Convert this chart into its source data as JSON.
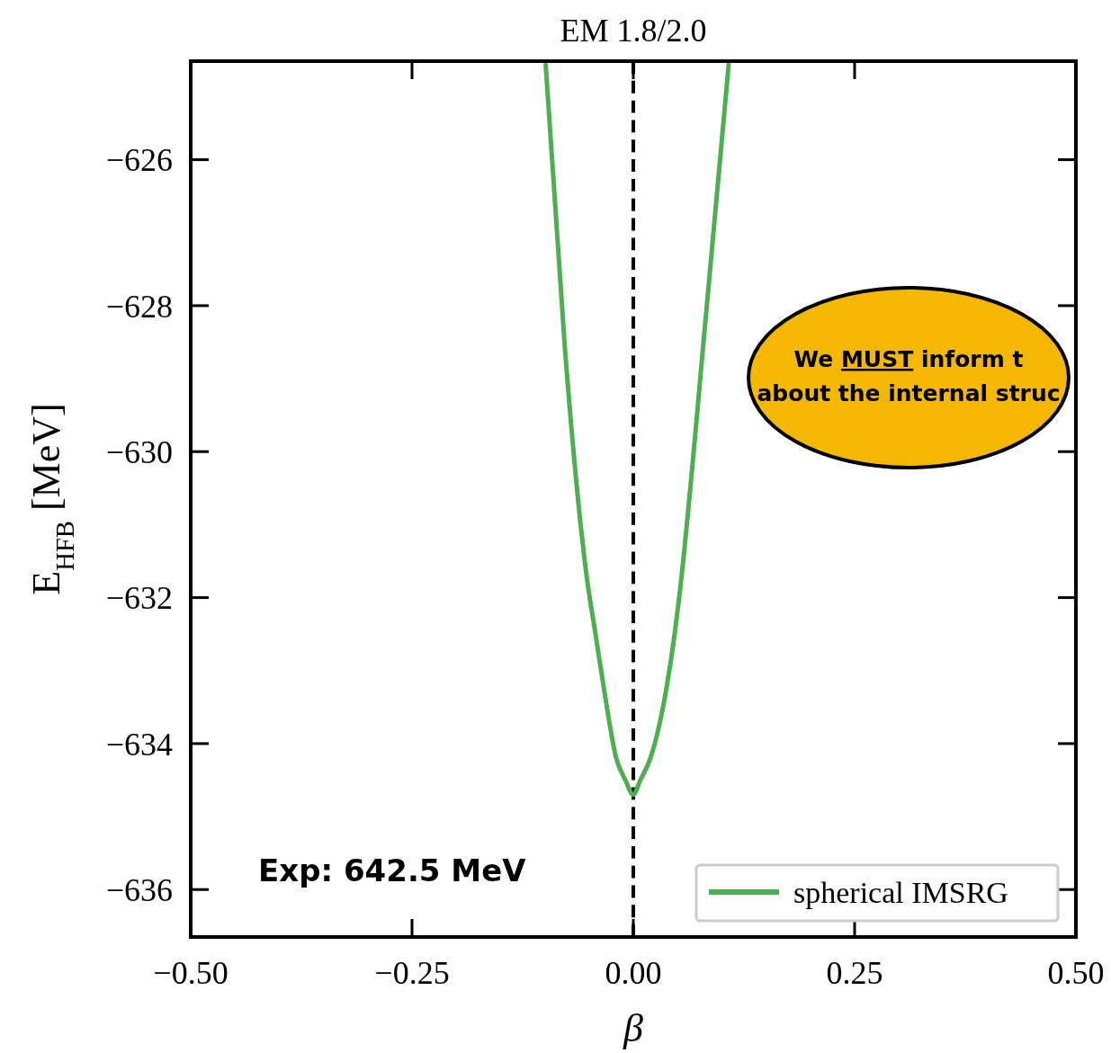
{
  "chart_data": {
    "type": "line",
    "title": "EM 1.8/2.0",
    "xlabel": "β",
    "ylabel": "E$_{HFB}$ [MeV]",
    "series": [
      {
        "name": "spherical IMSRG",
        "color": "#4caf50",
        "x": [
          -0.099,
          -0.0772,
          -0.0528,
          -0.0427,
          -0.0325,
          -0.0193,
          -0.009,
          0,
          0.008,
          0.0193,
          0.0366,
          0.0467,
          0.0518,
          0.0823,
          0.1077
        ],
        "values": [
          -624.7,
          -628.6,
          -631.7,
          -632.5,
          -633.3,
          -634.2,
          -634.5,
          -634.7,
          -634.5,
          -634.2,
          -633.3,
          -632.5,
          -632.0,
          -628.1,
          -624.7
        ]
      }
    ],
    "xlim": [
      -0.5,
      0.5
    ],
    "ylim": [
      -636.65,
      -624.65
    ],
    "xticks": [
      {
        "value": -0.5,
        "label": "−0.50"
      },
      {
        "value": -0.25,
        "label": "−0.25"
      },
      {
        "value": 0,
        "label": "0.00"
      },
      {
        "value": 0.25,
        "label": "0.25"
      },
      {
        "value": 0.5,
        "label": "0.50"
      }
    ],
    "yticks": [
      {
        "value": -636,
        "label": "−636"
      },
      {
        "value": -634,
        "label": "−634"
      },
      {
        "value": -632,
        "label": "−632"
      },
      {
        "value": -630,
        "label": "−630"
      },
      {
        "value": -628,
        "label": "−628"
      },
      {
        "value": -626,
        "label": "−626"
      }
    ],
    "ref_lines": [
      {
        "axis": "x",
        "value": 0,
        "color": "#000000",
        "line_style": "dashed"
      }
    ],
    "annotations": [
      "Exp: 642.5 MeV",
      "We MUST inform t",
      "about the internal struc"
    ],
    "legend": "bottom right",
    "grid": false,
    "marker": "none",
    "line_style": "solid"
  }
}
